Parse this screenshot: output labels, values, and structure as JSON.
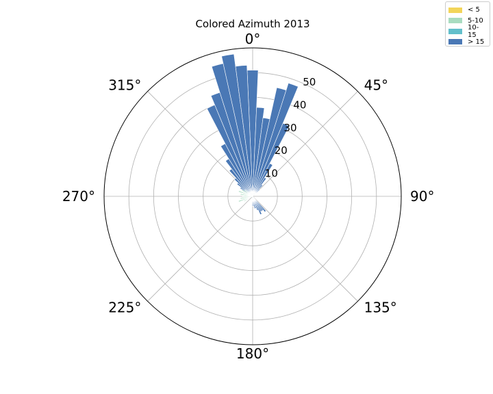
{
  "chart_data": {
    "type": "polar-bar",
    "title": "Colored Azimuth 2013",
    "theta_direction": "clockwise",
    "theta_zero": "north",
    "angle_ticks": [
      "0°",
      "45°",
      "90°",
      "135°",
      "180°",
      "225°",
      "270°",
      "315°"
    ],
    "radial_ticks": [
      10,
      20,
      30,
      40,
      50
    ],
    "rmax": 60,
    "grid": true,
    "legend": {
      "placement": "top-right",
      "entries": [
        {
          "label": "< 5",
          "color": "#f2d55a"
        },
        {
          "label": "5-10",
          "color": "#a9dcc0"
        },
        {
          "label": "10-15",
          "color": "#62bfcb"
        },
        {
          "label": "> 15",
          "color": "#4a78b5"
        }
      ]
    },
    "bin_width_deg": 5,
    "series": [
      {
        "name": "> 15",
        "color": "#4a78b5",
        "bins": [
          {
            "angle": 0,
            "value": 51
          },
          {
            "angle": 5,
            "value": 36
          },
          {
            "angle": 10,
            "value": 32
          },
          {
            "angle": 15,
            "value": 45
          },
          {
            "angle": 20,
            "value": 48
          },
          {
            "angle": 25,
            "value": 32
          },
          {
            "angle": 30,
            "value": 15
          },
          {
            "angle": 35,
            "value": 9
          },
          {
            "angle": 40,
            "value": 6
          },
          {
            "angle": 45,
            "value": 4
          },
          {
            "angle": 140,
            "value": 8
          },
          {
            "angle": 145,
            "value": 7
          },
          {
            "angle": 150,
            "value": 7
          },
          {
            "angle": 155,
            "value": 8
          },
          {
            "angle": 160,
            "value": 6
          },
          {
            "angle": 165,
            "value": 5
          },
          {
            "angle": 170,
            "value": 5
          },
          {
            "angle": 175,
            "value": 4
          },
          {
            "angle": 180,
            "value": 4
          },
          {
            "angle": 300,
            "value": 4
          },
          {
            "angle": 305,
            "value": 6
          },
          {
            "angle": 310,
            "value": 8
          },
          {
            "angle": 315,
            "value": 10
          },
          {
            "angle": 320,
            "value": 14
          },
          {
            "angle": 325,
            "value": 18
          },
          {
            "angle": 330,
            "value": 24
          },
          {
            "angle": 335,
            "value": 40
          },
          {
            "angle": 340,
            "value": 44
          },
          {
            "angle": 345,
            "value": 55
          },
          {
            "angle": 350,
            "value": 58
          },
          {
            "angle": 355,
            "value": 53
          }
        ]
      },
      {
        "name": "5-10",
        "color": "#a9dcc0",
        "bins": [
          {
            "angle": 240,
            "value": 4
          },
          {
            "angle": 250,
            "value": 6
          },
          {
            "angle": 260,
            "value": 5
          },
          {
            "angle": 270,
            "value": 4
          },
          {
            "angle": 280,
            "value": 5
          },
          {
            "angle": 290,
            "value": 6
          },
          {
            "angle": 300,
            "value": 5
          },
          {
            "angle": 310,
            "value": 4
          }
        ]
      }
    ]
  }
}
